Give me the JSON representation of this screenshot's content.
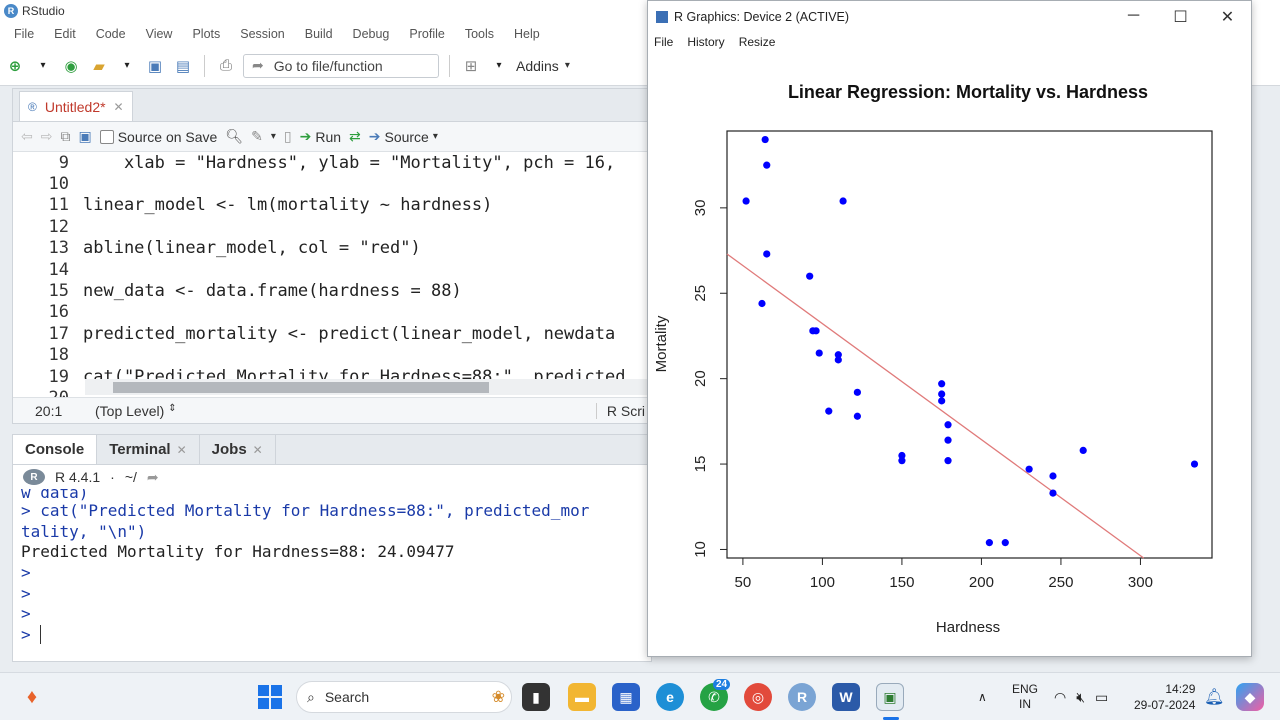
{
  "app": {
    "title": "RStudio",
    "menu": [
      "File",
      "Edit",
      "Code",
      "View",
      "Plots",
      "Session",
      "Build",
      "Debug",
      "Profile",
      "Tools",
      "Help"
    ],
    "goto_placeholder": "Go to file/function",
    "addins_label": "Addins"
  },
  "editor": {
    "tab_label": "Untitled2*",
    "source_on_save_label": "Source on Save",
    "run_label": "Run",
    "source_label": "Source",
    "lines": [
      {
        "num": "9",
        "text": "    xlab = \"Hardness\", ylab = \"Mortality\", pch = 16,"
      },
      {
        "num": "10",
        "text": ""
      },
      {
        "num": "11",
        "text": "linear_model <- lm(mortality ~ hardness)"
      },
      {
        "num": "12",
        "text": ""
      },
      {
        "num": "13",
        "text": "abline(linear_model, col = \"red\")"
      },
      {
        "num": "14",
        "text": ""
      },
      {
        "num": "15",
        "text": "new_data <- data.frame(hardness = 88)"
      },
      {
        "num": "16",
        "text": ""
      },
      {
        "num": "17",
        "text": "predicted_mortality <- predict(linear_model, newdata"
      },
      {
        "num": "18",
        "text": ""
      },
      {
        "num": "19",
        "text": "cat(\"Predicted Mortality for Hardness=88:\", predicted"
      },
      {
        "num": "20",
        "text": ""
      }
    ],
    "cursor_pos": "20:1",
    "scope": "(Top Level)",
    "file_type": "R Scri"
  },
  "console": {
    "tabs": [
      "Console",
      "Terminal",
      "Jobs"
    ],
    "r_version": "R 4.4.1",
    "path": "~/",
    "lines": [
      "w_data)",
      "> cat(\"Predicted Mortality for Hardness=88:\", predicted_mor",
      "tality, \"\\n\")",
      "Predicted Mortality for Hardness=88: 24.09477",
      ">",
      ">",
      ">",
      "> "
    ]
  },
  "graphics": {
    "window_title": "R Graphics: Device 2 (ACTIVE)",
    "menu": [
      "File",
      "History",
      "Resize"
    ]
  },
  "chart_data": {
    "type": "scatter",
    "title": "Linear Regression: Mortality vs. Hardness",
    "xlabel": "Hardness",
    "ylabel": "Mortality",
    "xlim": [
      40,
      345
    ],
    "ylim": [
      9.5,
      34.5
    ],
    "xticks": [
      50,
      100,
      150,
      200,
      250,
      300
    ],
    "yticks": [
      10,
      15,
      20,
      25,
      30
    ],
    "point_color": "#0000ff",
    "line_color": "#e07a7a",
    "points": [
      [
        52,
        30.4
      ],
      [
        64,
        34.0
      ],
      [
        65,
        32.5
      ],
      [
        65,
        27.3
      ],
      [
        62,
        24.4
      ],
      [
        92,
        26.0
      ],
      [
        94,
        22.8
      ],
      [
        96,
        22.8
      ],
      [
        98,
        21.5
      ],
      [
        104,
        18.1
      ],
      [
        110,
        21.4
      ],
      [
        110,
        21.1
      ],
      [
        113,
        30.4
      ],
      [
        122,
        19.2
      ],
      [
        122,
        17.8
      ],
      [
        150,
        15.5
      ],
      [
        150,
        15.2
      ],
      [
        175,
        19.7
      ],
      [
        175,
        19.1
      ],
      [
        175,
        18.7
      ],
      [
        179,
        17.3
      ],
      [
        179,
        16.4
      ],
      [
        179,
        15.2
      ],
      [
        205,
        10.4
      ],
      [
        215,
        10.4
      ],
      [
        230,
        14.7
      ],
      [
        245,
        14.3
      ],
      [
        245,
        13.3
      ],
      [
        264,
        15.8
      ],
      [
        334,
        15.0
      ]
    ],
    "regression": {
      "x1": 40,
      "y1": 27.3,
      "x2": 302,
      "y2": 9.5
    }
  },
  "taskbar": {
    "search_placeholder": "Search",
    "whatsapp_badge": "24",
    "lang_line1": "ENG",
    "lang_line2": "IN",
    "time": "14:29",
    "date": "29-07-2024"
  }
}
